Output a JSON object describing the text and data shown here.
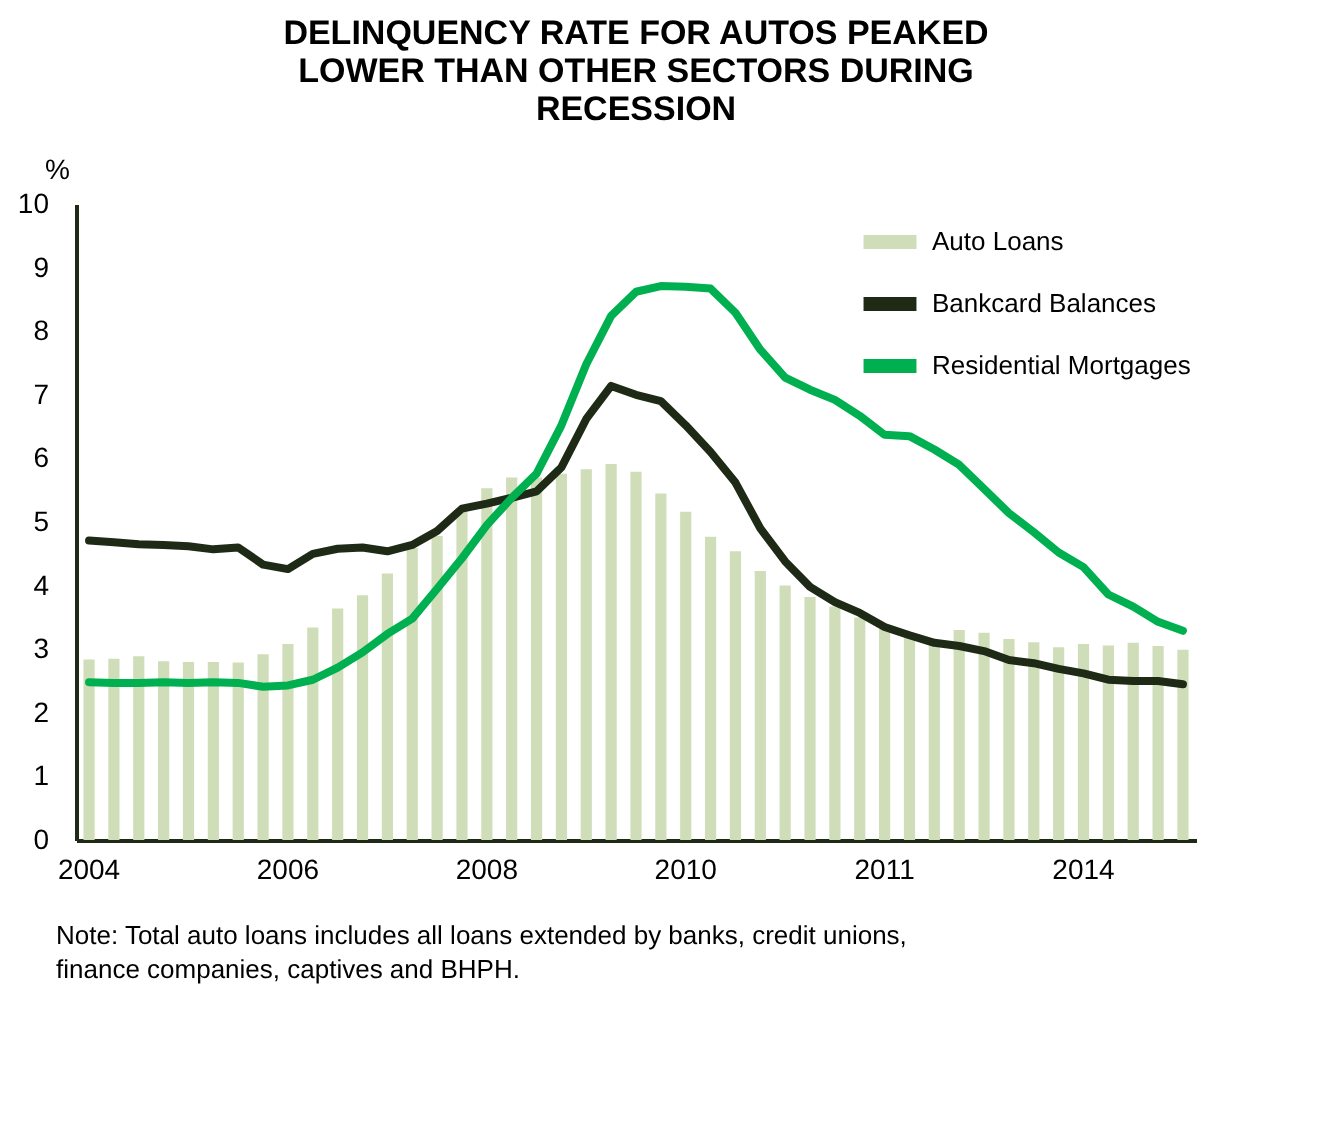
{
  "chart_data": {
    "type": "bar",
    "title": [
      "DELINQUENCY RATE FOR AUTOS PEAKED",
      "LOWER THAN OTHER SECTORS DURING",
      "RECESSION"
    ],
    "ylabel": "%",
    "categories": [
      "2004",
      null,
      null,
      null,
      null,
      null,
      null,
      null,
      "2006",
      null,
      null,
      null,
      null,
      null,
      null,
      null,
      "2008",
      null,
      null,
      null,
      null,
      null,
      null,
      null,
      "2010",
      null,
      null,
      null,
      null,
      null,
      null,
      null,
      "2011",
      null,
      null,
      null,
      null,
      null,
      null,
      null,
      "2014",
      null,
      null,
      null,
      null
    ],
    "series": [
      {
        "name": "Auto Loans",
        "type": "bar",
        "color": "#cfddb8",
        "values": [
          2.84,
          2.85,
          2.89,
          2.81,
          2.8,
          2.8,
          2.79,
          2.92,
          3.08,
          3.34,
          3.64,
          3.85,
          4.19,
          4.59,
          4.78,
          5.17,
          5.53,
          5.7,
          5.7,
          5.76,
          5.83,
          5.91,
          5.79,
          5.45,
          5.16,
          4.77,
          4.54,
          4.23,
          4.0,
          3.82,
          3.67,
          3.5,
          3.32,
          3.19,
          3.1,
          3.3,
          3.26,
          3.16,
          3.11,
          3.03,
          3.08,
          3.06,
          3.1,
          3.05,
          2.99
        ]
      },
      {
        "name": "Bankcard Balances",
        "type": "line",
        "color": "#1e2a16",
        "values": [
          4.71,
          4.68,
          4.65,
          4.64,
          4.62,
          4.57,
          4.6,
          4.33,
          4.26,
          4.5,
          4.58,
          4.6,
          4.54,
          4.64,
          4.86,
          5.21,
          5.29,
          5.38,
          5.48,
          5.86,
          6.62,
          7.14,
          7.0,
          6.9,
          6.52,
          6.1,
          5.62,
          4.9,
          4.38,
          3.98,
          3.74,
          3.57,
          3.35,
          3.22,
          3.1,
          3.05,
          2.97,
          2.83,
          2.78,
          2.69,
          2.62,
          2.52,
          2.5,
          2.5,
          2.45
        ]
      },
      {
        "name": "Residential Mortgages",
        "type": "line",
        "color": "#00b050",
        "values": [
          2.48,
          2.47,
          2.47,
          2.48,
          2.47,
          2.48,
          2.47,
          2.41,
          2.43,
          2.52,
          2.71,
          2.95,
          3.24,
          3.48,
          3.95,
          4.43,
          4.95,
          5.38,
          5.76,
          6.52,
          7.48,
          8.24,
          8.62,
          8.71,
          8.7,
          8.67,
          8.29,
          7.71,
          7.27,
          7.08,
          6.92,
          6.67,
          6.37,
          6.35,
          6.14,
          5.9,
          5.52,
          5.14,
          4.84,
          4.52,
          4.29,
          3.86,
          3.67,
          3.43,
          3.29
        ]
      }
    ],
    "ylim": [
      0,
      10
    ],
    "yticks": [
      0,
      1,
      2,
      3,
      4,
      5,
      6,
      7,
      8,
      9,
      10
    ],
    "grid": false,
    "legend": "top right",
    "annotations": [
      "Note: Total auto loans includes all loans extended by banks, credit unions,",
      "finance companies, captives and BHPH."
    ]
  }
}
